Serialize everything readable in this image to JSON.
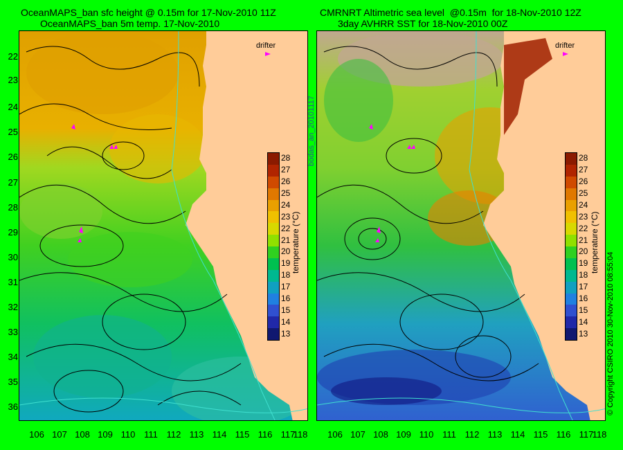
{
  "left_panel": {
    "title_line1": "OceanMAPS_ban sfc height @ 0.15m for 17-Nov-2010 11Z",
    "title_line2": "OceanMAPS_ban 5m temp. 17-Nov-2010",
    "drifter_label": "drifter"
  },
  "right_panel": {
    "title_line1": "CMRNRT Altimetric sea level  @0.15m  for 18-Nov-2010 12Z",
    "title_line2": "3day AVHRR SST for 18-Nov-2010 00Z",
    "drifter_label": "drifter"
  },
  "lat_ticks": [
    "22",
    "23",
    "24",
    "25",
    "26",
    "27",
    "28",
    "29",
    "30",
    "31",
    "32",
    "33",
    "34",
    "35",
    "36"
  ],
  "lon_ticks": [
    "106",
    "107",
    "108",
    "109",
    "110",
    "111",
    "112",
    "113",
    "114",
    "115",
    "116",
    "117",
    "118"
  ],
  "colorbar": {
    "title": "temperature (°C)",
    "ticks": [
      "28",
      "27",
      "26",
      "25",
      "24",
      "23",
      "22",
      "21",
      "20",
      "19",
      "18",
      "17",
      "16",
      "15",
      "14",
      "13"
    ],
    "colors": [
      "#8b1a00",
      "#b02400",
      "#d04a00",
      "#e07800",
      "#eaa000",
      "#f0c000",
      "#d8d800",
      "#90e000",
      "#30d020",
      "#00c050",
      "#00b890",
      "#10a0c0",
      "#2080e0",
      "#3050d0",
      "#2028a8",
      "#101870"
    ]
  },
  "side_labels": {
    "middle": "bodas_an_20101117",
    "right": "© Copyright CSIRO 2010   30-Nov-2010 08:55:04"
  },
  "colors": {
    "background": "#00ff00",
    "land": "#ffcc99",
    "drifter": "#ff00ff",
    "contour": "#000000",
    "isobath": "#40e0d0"
  }
}
